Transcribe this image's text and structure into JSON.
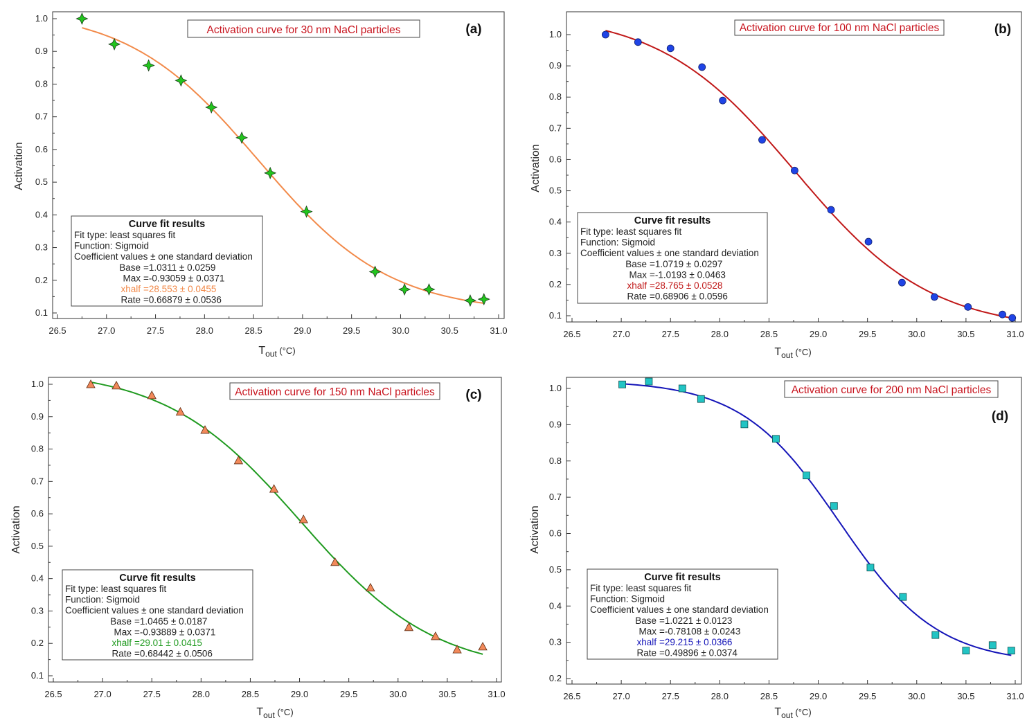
{
  "chart_data": [
    {
      "type": "scatter",
      "panel_label": "(a)",
      "title": "Activation curve for 30 nm  NaCl particles",
      "xlabel": "T",
      "xlabel_sub": "out",
      "xlabel_unit": " (°C)",
      "ylabel": "Activation",
      "xlim": [
        26.5,
        31.0
      ],
      "ylim": [
        0.1,
        1.0
      ],
      "xticks": [
        "26.5",
        "27.0",
        "27.5",
        "28.0",
        "28.5",
        "29.0",
        "29.5",
        "30.0",
        "30.5",
        "31.0"
      ],
      "yticks": [
        "0.1",
        "0.2",
        "0.3",
        "0.4",
        "0.5",
        "0.6",
        "0.7",
        "0.8",
        "0.9",
        "1.0"
      ],
      "marker": "star",
      "marker_color": "#22c41e",
      "curve_color": "#f28a4a",
      "x": [
        26.75,
        27.08,
        27.43,
        27.76,
        28.07,
        28.38,
        28.67,
        29.04,
        29.74,
        30.04,
        30.29,
        30.71,
        30.85
      ],
      "y": [
        1.0,
        0.922,
        0.857,
        0.811,
        0.729,
        0.636,
        0.528,
        0.41,
        0.226,
        0.172,
        0.172,
        0.138,
        0.142
      ],
      "fit": {
        "heading": "Curve fit results",
        "lines": [
          "Fit type: least squares fit",
          "Function: Sigmoid",
          "Coefficient values ± one standard deviation"
        ],
        "coefficients": [
          {
            "name": "Base",
            "value": "=1.0311 ± 0.0259",
            "base": 1.0311
          },
          {
            "name": "Max",
            "value": "=-0.93059 ± 0.0371",
            "max": -0.93059
          },
          {
            "name": "xhalf",
            "value": "=28.553 ± 0.0455",
            "xhalf": 28.553,
            "highlight": true
          },
          {
            "name": "Rate",
            "value": "=0.66879 ± 0.0536",
            "rate": 0.66879
          }
        ],
        "range": [
          26.75,
          30.85
        ]
      }
    },
    {
      "type": "scatter",
      "panel_label": "(b)",
      "title": "Activation curve for 100 nm NaCl particles",
      "xlabel": "T",
      "xlabel_sub": "out",
      "xlabel_unit": " (°C)",
      "ylabel": "Activation",
      "xlim": [
        26.5,
        31.0
      ],
      "ylim": [
        0.1,
        1.0
      ],
      "xticks": [
        "26.5",
        "27.0",
        "27.5",
        "28.0",
        "28.5",
        "29.0",
        "29.5",
        "30.0",
        "30.5",
        "31.0"
      ],
      "yticks": [
        "0.1",
        "0.2",
        "0.3",
        "0.4",
        "0.5",
        "0.6",
        "0.7",
        "0.8",
        "0.9",
        "1.0"
      ],
      "marker": "circle",
      "marker_color": "#1f44e6",
      "curve_color": "#c01818",
      "x": [
        26.84,
        27.17,
        27.5,
        27.82,
        28.03,
        28.43,
        28.76,
        29.13,
        29.51,
        29.85,
        30.18,
        30.52,
        30.87,
        30.97
      ],
      "y": [
        1.0,
        0.976,
        0.956,
        0.896,
        0.789,
        0.663,
        0.565,
        0.439,
        0.337,
        0.206,
        0.16,
        0.128,
        0.104,
        0.093
      ],
      "fit": {
        "heading": "Curve fit results",
        "lines": [
          "Fit type: least squares fit",
          "Function: Sigmoid",
          "Coefficient values ± one standard deviation"
        ],
        "coefficients": [
          {
            "name": "Base",
            "value": "=1.0719 ± 0.0297",
            "base": 1.0719
          },
          {
            "name": "Max",
            "value": "=-1.0193 ± 0.0463",
            "max": -1.0193
          },
          {
            "name": "xhalf",
            "value": "=28.765 ± 0.0528",
            "xhalf": 28.765,
            "highlight": true
          },
          {
            "name": "Rate",
            "value": "=0.68906 ± 0.0596",
            "rate": 0.68906
          }
        ],
        "range": [
          26.84,
          30.97
        ]
      }
    },
    {
      "type": "scatter",
      "panel_label": "(c)",
      "title": "Activation curve for 150 nm NaCl particles",
      "xlabel": "T",
      "xlabel_sub": "out",
      "xlabel_unit": " (°C)",
      "ylabel": "Activation",
      "xlim": [
        26.5,
        31.0
      ],
      "ylim": [
        0.1,
        1.0
      ],
      "xticks": [
        "26.5",
        "27.0",
        "27.5",
        "28.0",
        "28.5",
        "29.0",
        "29.5",
        "30.0",
        "30.5",
        "31.0"
      ],
      "yticks": [
        "0.1",
        "0.2",
        "0.3",
        "0.4",
        "0.5",
        "0.6",
        "0.7",
        "0.8",
        "0.9",
        "1.0"
      ],
      "marker": "triangle",
      "marker_color": "#f2895a",
      "curve_color": "#1f9a1f",
      "x": [
        26.88,
        27.14,
        27.5,
        27.79,
        28.04,
        28.38,
        28.74,
        29.04,
        29.36,
        29.72,
        30.11,
        30.38,
        30.6,
        30.86
      ],
      "y": [
        1.0,
        0.996,
        0.966,
        0.915,
        0.859,
        0.765,
        0.677,
        0.583,
        0.451,
        0.372,
        0.25,
        0.222,
        0.181,
        0.19
      ],
      "fit": {
        "heading": "Curve fit results",
        "lines": [
          "Fit type: least squares fit",
          "Function: Sigmoid",
          "Coefficient values ± one standard deviation"
        ],
        "coefficients": [
          {
            "name": "Base",
            "value": "=1.0465 ± 0.0187",
            "base": 1.0465
          },
          {
            "name": "Max",
            "value": "=-0.93889 ± 0.0371",
            "max": -0.93889
          },
          {
            "name": "xhalf",
            "value": "=29.01 ± 0.0415",
            "xhalf": 29.01,
            "highlight": true
          },
          {
            "name": "Rate",
            "value": "=0.68442 ± 0.0506",
            "rate": 0.68442
          }
        ],
        "range": [
          26.88,
          30.86
        ]
      }
    },
    {
      "type": "scatter",
      "panel_label": "(d)",
      "title": "Activation curve for  200 nm NaCl particles",
      "xlabel": "T",
      "xlabel_sub": "out",
      "xlabel_unit": " (°C)",
      "ylabel": "Activation",
      "xlim": [
        26.5,
        31.0
      ],
      "ylim": [
        0.2,
        1.0
      ],
      "xticks": [
        "26.5",
        "27.0",
        "27.5",
        "28.0",
        "28.5",
        "29.0",
        "29.5",
        "30.0",
        "30.5",
        "31.0"
      ],
      "yticks": [
        "0.2",
        "0.3",
        "0.4",
        "0.5",
        "0.6",
        "0.7",
        "0.8",
        "0.9",
        "1.0"
      ],
      "marker": "square",
      "marker_color": "#22c4c4",
      "curve_color": "#1414b8",
      "x": [
        27.01,
        27.28,
        27.62,
        27.81,
        28.25,
        28.57,
        28.88,
        29.16,
        29.53,
        29.86,
        30.19,
        30.5,
        30.77,
        30.96
      ],
      "y": [
        1.011,
        1.019,
        1.0,
        0.971,
        0.901,
        0.861,
        0.76,
        0.676,
        0.506,
        0.425,
        0.32,
        0.277,
        0.292,
        0.277
      ],
      "fit": {
        "heading": "Curve fit results",
        "lines": [
          "Fit type: least squares fit",
          "Function: Sigmoid",
          "Coefficient values ± one standard deviation"
        ],
        "coefficients": [
          {
            "name": "Base",
            "value": "=1.0221 ± 0.0123",
            "base": 1.0221
          },
          {
            "name": "Max",
            "value": "=-0.78108 ± 0.0243",
            "max": -0.78108
          },
          {
            "name": "xhalf",
            "value": "=29.215 ± 0.0366",
            "xhalf": 29.215,
            "highlight": true
          },
          {
            "name": "Rate",
            "value": "=0.49896 ± 0.0374",
            "rate": 0.49896
          }
        ],
        "range": [
          27.0,
          30.96
        ]
      }
    }
  ]
}
